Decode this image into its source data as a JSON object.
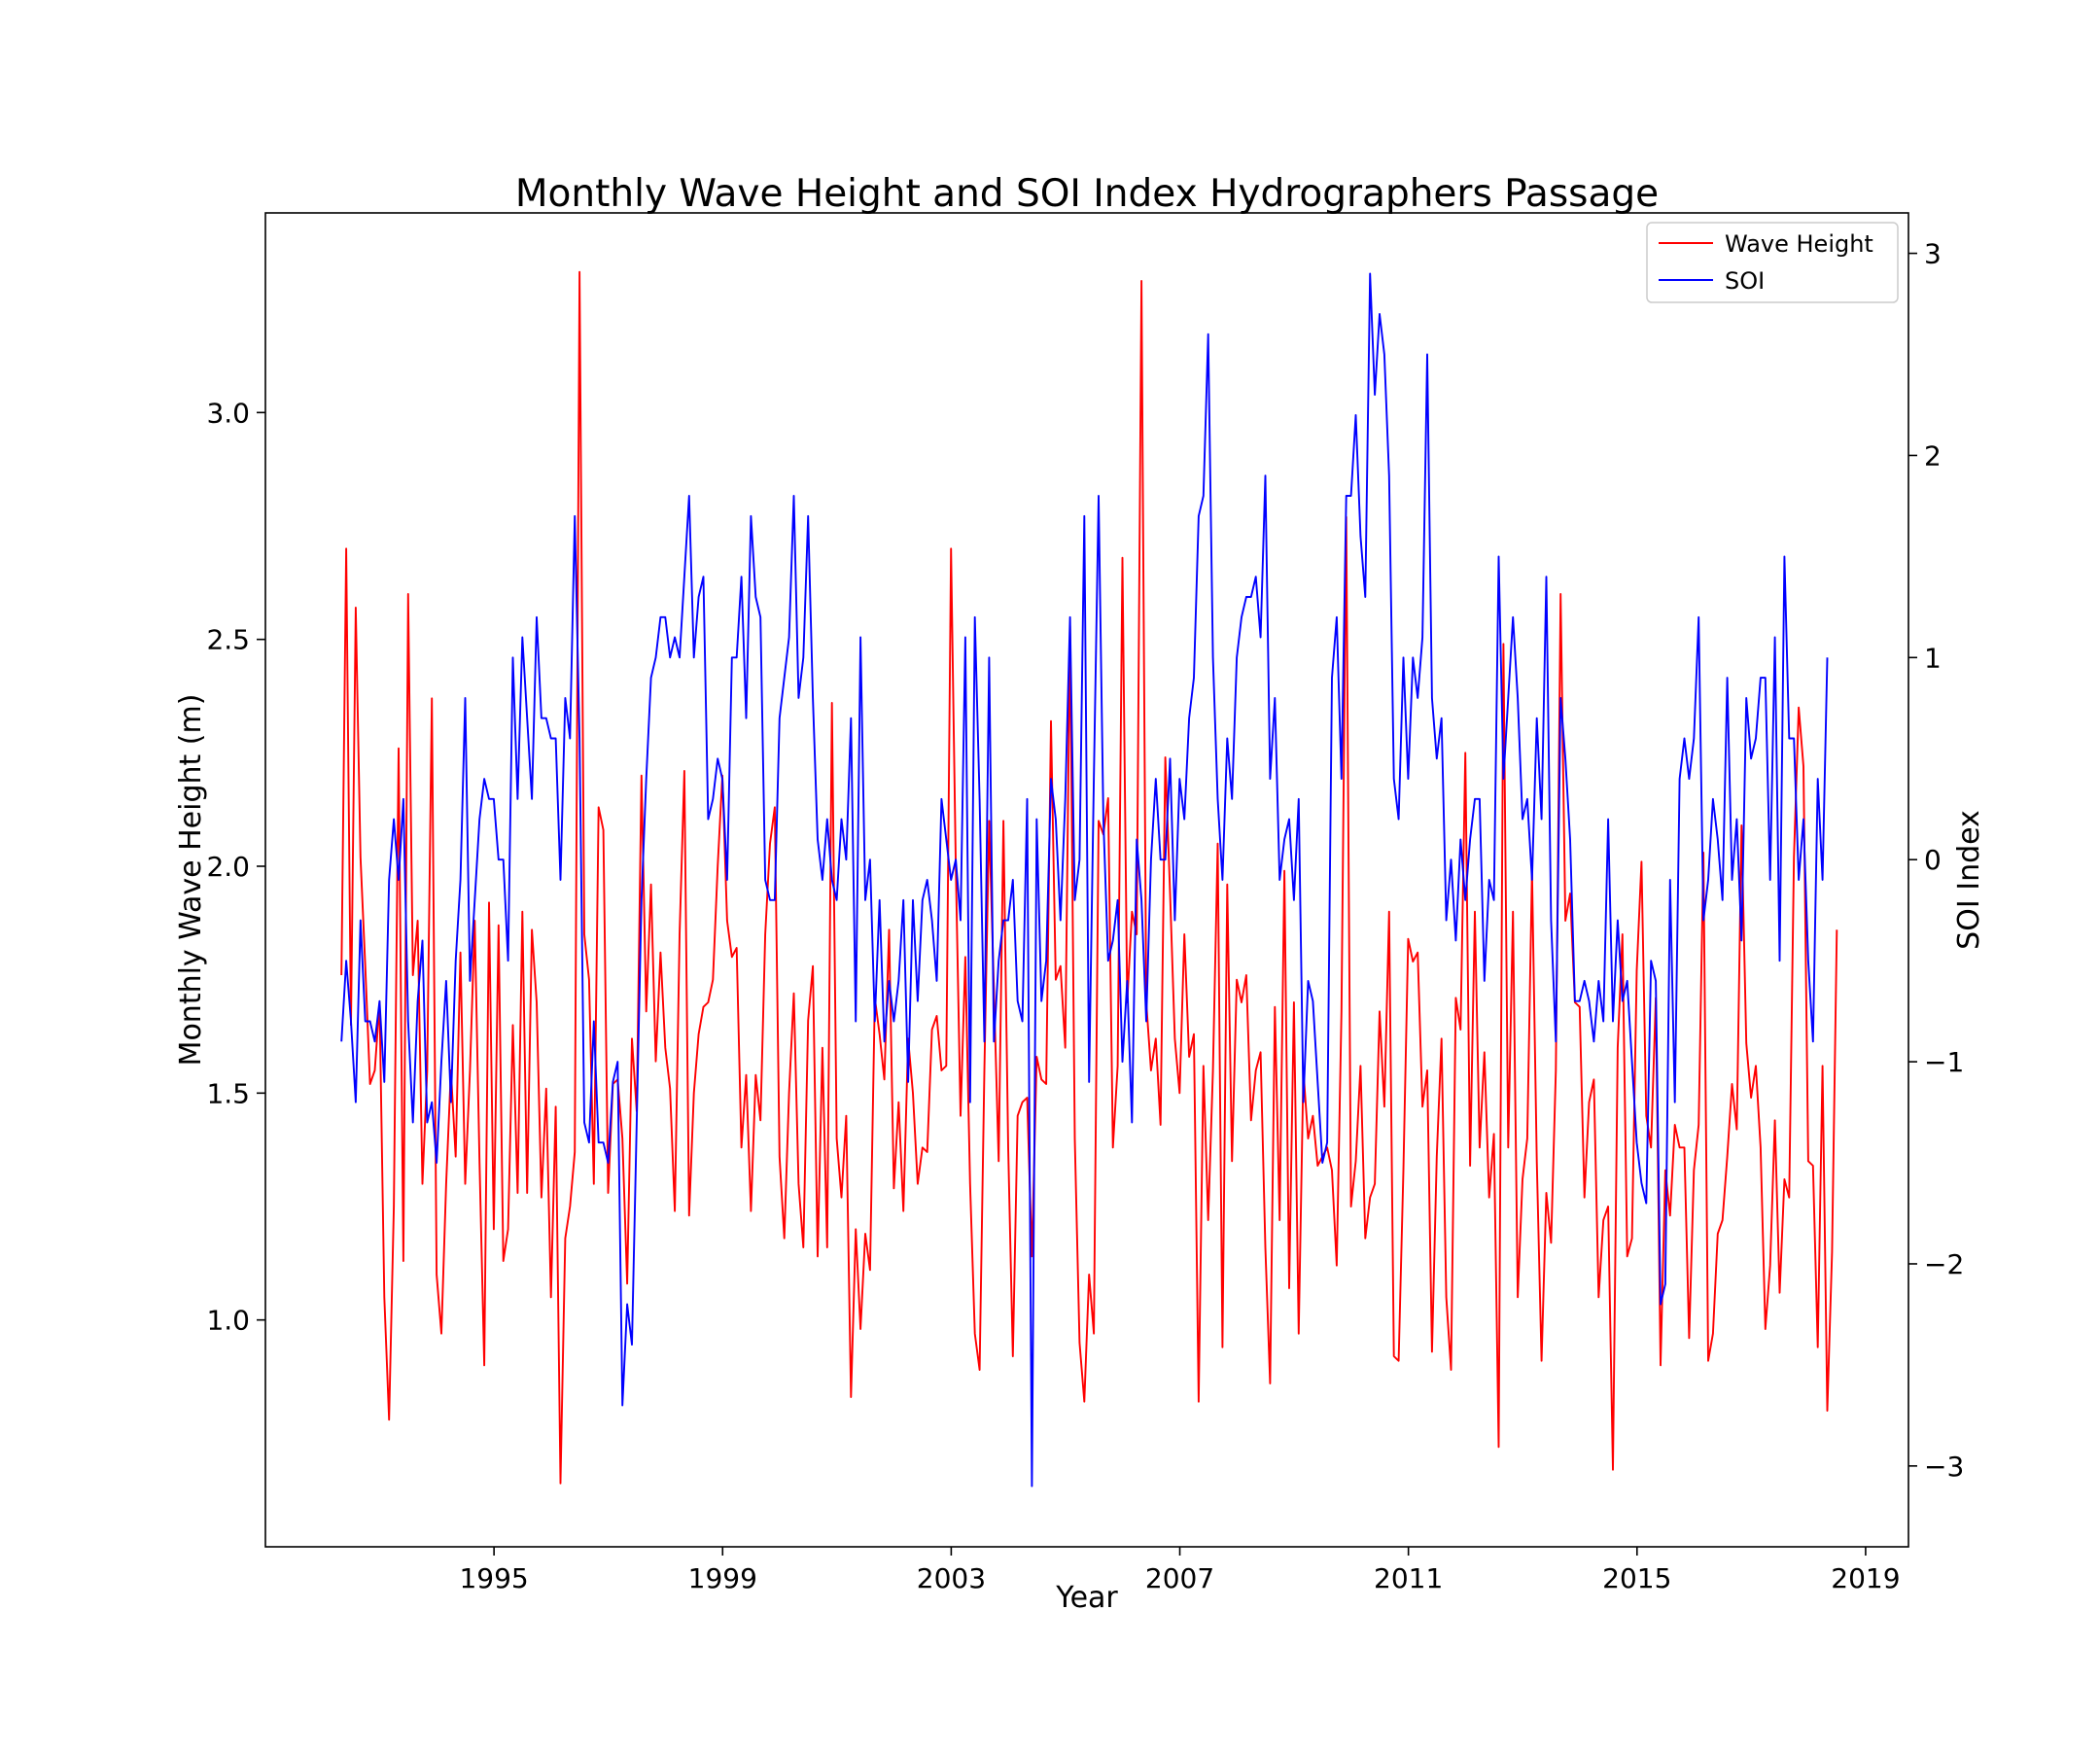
{
  "chart_data": {
    "type": "line",
    "title": "Monthly Wave Height and SOI Index Hydrographers Passage",
    "xlabel": "Year",
    "ylabel": "Monthly Wave Height (m)",
    "y2label": "SOI Index",
    "x_ticks": [
      "1995",
      "1999",
      "2003",
      "2007",
      "2011",
      "2015",
      "2019"
    ],
    "x_tick_values": [
      1995,
      1999,
      2003,
      2007,
      2011,
      2015,
      2019
    ],
    "xlim": [
      1991.0,
      2019.75
    ],
    "y_ticks": [
      "1.0",
      "1.5",
      "2.0",
      "2.5",
      "3.0"
    ],
    "y_tick_values": [
      1.0,
      1.5,
      2.0,
      2.5,
      3.0
    ],
    "ylim": [
      0.5,
      3.44
    ],
    "y2_ticks": [
      "−3",
      "−2",
      "−1",
      "0",
      "1",
      "2",
      "3"
    ],
    "y2_tick_values": [
      -3,
      -2,
      -1,
      0,
      1,
      2,
      3
    ],
    "y2lim": [
      -3.4,
      3.2
    ],
    "grid": false,
    "legend_position": "top-right",
    "series": [
      {
        "name": "Wave Height",
        "axis": "left",
        "color": "#ff0000",
        "x_start": 1992.33,
        "x_step": 0.08333,
        "values": [
          1.76,
          2.7,
          1.65,
          2.57,
          2.02,
          1.78,
          1.52,
          1.55,
          1.7,
          1.05,
          0.78,
          1.25,
          2.26,
          1.13,
          2.6,
          1.76,
          1.88,
          1.3,
          1.55,
          2.37,
          1.1,
          0.97,
          1.3,
          1.55,
          1.36,
          1.81,
          1.3,
          1.55,
          1.88,
          1.35,
          0.9,
          1.92,
          1.2,
          1.87,
          1.13,
          1.2,
          1.65,
          1.28,
          1.9,
          1.28,
          1.86,
          1.7,
          1.27,
          1.51,
          1.05,
          1.47,
          0.64,
          1.18,
          1.25,
          1.37,
          3.31,
          1.85,
          1.75,
          1.3,
          2.13,
          2.08,
          1.28,
          1.52,
          1.53,
          1.4,
          1.08,
          1.62,
          1.46,
          2.2,
          1.68,
          1.96,
          1.57,
          1.81,
          1.6,
          1.51,
          1.24,
          1.85,
          2.21,
          1.23,
          1.5,
          1.63,
          1.69,
          1.7,
          1.75,
          2.0,
          2.2,
          1.88,
          1.8,
          1.82,
          1.38,
          1.54,
          1.24,
          1.54,
          1.44,
          1.85,
          2.05,
          2.13,
          1.36,
          1.18,
          1.5,
          1.72,
          1.3,
          1.16,
          1.66,
          1.78,
          1.14,
          1.6,
          1.16,
          2.36,
          1.4,
          1.27,
          1.45,
          0.83,
          1.2,
          0.98,
          1.19,
          1.11,
          1.71,
          1.63,
          1.53,
          1.86,
          1.29,
          1.48,
          1.24,
          1.62,
          1.5,
          1.3,
          1.38,
          1.37,
          1.64,
          1.67,
          1.55,
          1.56,
          2.7,
          2.0,
          1.45,
          1.8,
          1.3,
          0.97,
          0.89,
          1.55,
          2.1,
          1.73,
          1.35,
          2.1,
          1.38,
          0.92,
          1.45,
          1.48,
          1.49,
          1.14,
          1.58,
          1.53,
          1.52,
          2.32,
          1.75,
          1.78,
          1.6,
          2.53,
          1.4,
          0.95,
          0.82,
          1.1,
          0.97,
          2.1,
          2.07,
          2.15,
          1.38,
          1.56,
          2.68,
          1.7,
          1.9,
          1.85,
          3.29,
          1.7,
          1.55,
          1.62,
          1.43,
          2.24,
          1.94,
          1.62,
          1.5,
          1.85,
          1.58,
          1.63,
          0.82,
          1.56,
          1.22,
          1.55,
          2.05,
          0.94,
          1.96,
          1.35,
          1.75,
          1.7,
          1.76,
          1.44,
          1.55,
          1.59,
          1.16,
          0.86,
          1.69,
          1.22,
          1.99,
          1.07,
          1.7,
          0.97,
          1.55,
          1.4,
          1.45,
          1.34,
          1.36,
          1.38,
          1.33,
          1.12,
          1.68,
          2.77,
          1.25,
          1.35,
          1.56,
          1.18,
          1.27,
          1.3,
          1.68,
          1.47,
          1.9,
          0.92,
          0.91,
          1.33,
          1.84,
          1.79,
          1.81,
          1.47,
          1.55,
          0.93,
          1.36,
          1.62,
          1.05,
          0.89,
          1.71,
          1.64,
          2.25,
          1.34,
          1.9,
          1.38,
          1.59,
          1.27,
          1.41,
          0.72,
          2.49,
          1.38,
          1.9,
          1.05,
          1.31,
          1.4,
          1.99,
          1.35,
          0.91,
          1.28,
          1.17,
          1.55,
          2.6,
          1.88,
          1.94,
          1.7,
          1.69,
          1.27,
          1.48,
          1.53,
          1.05,
          1.22,
          1.25,
          0.67,
          1.6,
          1.85,
          1.14,
          1.18,
          1.77,
          2.01,
          1.45,
          1.38,
          1.71,
          0.9,
          1.33,
          1.23,
          1.43,
          1.38,
          1.38,
          0.96,
          1.33,
          1.43,
          2.03,
          0.91,
          0.97,
          1.19,
          1.22,
          1.36,
          1.52,
          1.42,
          2.09,
          1.61,
          1.49,
          1.56,
          1.38,
          0.98,
          1.12,
          1.44,
          1.06,
          1.31,
          1.27,
          2.02,
          2.35,
          2.22,
          1.35,
          1.34,
          0.94,
          1.56,
          0.8,
          1.15,
          1.86
        ]
      },
      {
        "name": "SOI",
        "axis": "right",
        "color": "#0000ff",
        "x_start": 1992.33,
        "x_step": 0.08333,
        "values": [
          -0.9,
          -0.5,
          -0.8,
          -1.2,
          -0.3,
          -0.8,
          -0.8,
          -0.9,
          -0.7,
          -1.1,
          -0.1,
          0.2,
          -0.1,
          0.3,
          -0.8,
          -1.3,
          -0.7,
          -0.4,
          -1.3,
          -1.2,
          -1.5,
          -1.0,
          -0.6,
          -1.2,
          -0.5,
          -0.1,
          0.8,
          -0.6,
          -0.2,
          0.2,
          0.4,
          0.3,
          0.3,
          0.0,
          0.0,
          -0.5,
          1.0,
          0.3,
          1.1,
          0.7,
          0.3,
          1.2,
          0.7,
          0.7,
          0.6,
          0.6,
          -0.1,
          0.8,
          0.6,
          1.7,
          0.6,
          -1.3,
          -1.4,
          -0.8,
          -1.4,
          -1.4,
          -1.5,
          -1.1,
          -1.0,
          -2.7,
          -2.2,
          -2.4,
          -1.3,
          -0.2,
          0.4,
          0.9,
          1.0,
          1.2,
          1.2,
          1.0,
          1.1,
          1.0,
          1.4,
          1.8,
          1.0,
          1.3,
          1.4,
          0.2,
          0.3,
          0.5,
          0.4,
          -0.1,
          1.0,
          1.0,
          1.4,
          0.7,
          1.7,
          1.3,
          1.2,
          -0.1,
          -0.2,
          -0.2,
          0.7,
          0.9,
          1.1,
          1.8,
          0.8,
          1.0,
          1.7,
          0.8,
          0.1,
          -0.1,
          0.2,
          -0.1,
          -0.2,
          0.2,
          0.0,
          0.7,
          -0.8,
          1.1,
          -0.2,
          0.0,
          -0.8,
          -0.2,
          -0.9,
          -0.6,
          -0.8,
          -0.6,
          -0.2,
          -1.1,
          -0.2,
          -0.7,
          -0.2,
          -0.1,
          -0.3,
          -0.6,
          0.3,
          0.1,
          -0.1,
          0.0,
          -0.3,
          1.1,
          -1.2,
          1.2,
          0.3,
          -0.9,
          1.0,
          -0.9,
          -0.5,
          -0.3,
          -0.3,
          -0.1,
          -0.7,
          -0.8,
          0.3,
          -3.1,
          0.2,
          -0.7,
          -0.5,
          0.4,
          0.2,
          -0.3,
          0.3,
          1.2,
          -0.2,
          0.0,
          1.7,
          -1.1,
          0.4,
          1.8,
          0.2,
          -0.5,
          -0.4,
          -0.2,
          -1.0,
          -0.6,
          -1.3,
          0.1,
          -0.2,
          -0.8,
          0.0,
          0.4,
          0.0,
          0.0,
          0.5,
          -0.3,
          0.4,
          0.2,
          0.7,
          0.9,
          1.7,
          1.8,
          2.6,
          1.0,
          0.3,
          -0.1,
          0.6,
          0.3,
          1.0,
          1.2,
          1.3,
          1.3,
          1.4,
          1.1,
          1.9,
          0.4,
          0.8,
          -0.1,
          0.1,
          0.2,
          -0.2,
          0.3,
          -1.2,
          -0.6,
          -0.7,
          -1.1,
          -1.5,
          -1.4,
          0.9,
          1.2,
          0.4,
          1.8,
          1.8,
          2.2,
          1.6,
          1.3,
          2.9,
          2.3,
          2.7,
          2.5,
          1.9,
          0.4,
          0.2,
          1.0,
          0.4,
          1.0,
          0.8,
          1.1,
          2.5,
          0.8,
          0.5,
          0.7,
          -0.3,
          0.0,
          -0.4,
          0.1,
          -0.2,
          0.1,
          0.3,
          0.3,
          -0.6,
          -0.1,
          -0.2,
          1.5,
          0.4,
          0.8,
          1.2,
          0.8,
          0.2,
          0.3,
          -0.1,
          0.7,
          0.2,
          1.4,
          -0.3,
          -0.9,
          0.8,
          0.5,
          0.1,
          -0.7,
          -0.7,
          -0.6,
          -0.7,
          -0.9,
          -0.6,
          -0.8,
          0.2,
          -0.8,
          -0.3,
          -0.7,
          -0.6,
          -1.0,
          -1.4,
          -1.6,
          -1.7,
          -0.5,
          -0.6,
          -2.2,
          -2.1,
          -0.1,
          -1.2,
          0.4,
          0.6,
          0.4,
          0.6,
          1.2,
          -0.3,
          -0.1,
          0.3,
          0.1,
          -0.2,
          0.9,
          -0.1,
          0.2,
          -0.4,
          0.8,
          0.5,
          0.6,
          0.9,
          0.9,
          -0.1,
          1.1,
          -0.5,
          1.5,
          0.6,
          0.6,
          -0.1,
          0.2,
          -0.5,
          -0.9,
          0.4,
          -0.1,
          1.0
        ]
      }
    ]
  }
}
